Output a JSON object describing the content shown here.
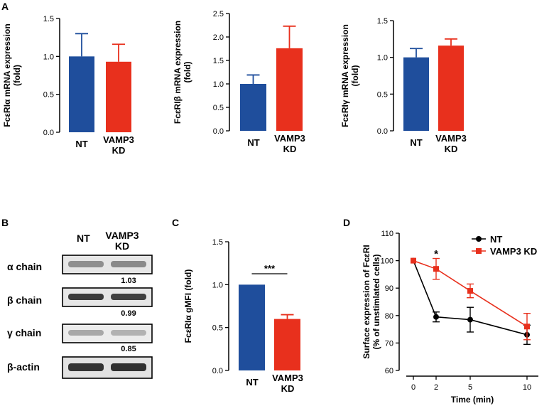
{
  "panel_labels": {
    "a": "A",
    "b": "B",
    "c": "C",
    "d": "D"
  },
  "colors": {
    "nt": "#1f4e9c",
    "kd": "#e8301d",
    "axis": "#000000"
  },
  "categories": {
    "nt": "NT",
    "kd_line1": "VAMP3",
    "kd_line2": "KD"
  },
  "chart_data": [
    {
      "id": "alpha",
      "type": "bar",
      "ylabel_line1": "FcεRIα mRNA expression",
      "ylabel_line2": "(fold)",
      "ylim": [
        0,
        1.5
      ],
      "ticks": [
        "0.0",
        "0.5",
        "1.0",
        "1.5"
      ],
      "values": [
        1.0,
        0.93
      ],
      "errors": [
        0.3,
        0.23
      ]
    },
    {
      "id": "beta",
      "type": "bar",
      "ylabel_line1": "FcεRIβ mRNA expression",
      "ylabel_line2": "(fold)",
      "ylim": [
        0,
        2.5
      ],
      "ticks": [
        "0.0",
        "0.5",
        "1.0",
        "1.5",
        "2.0",
        "2.5"
      ],
      "values": [
        1.0,
        1.76
      ],
      "errors": [
        0.19,
        0.47
      ]
    },
    {
      "id": "gamma",
      "type": "bar",
      "ylabel_line1": "FcεRIγ mRNA expression",
      "ylabel_line2": "(fold)",
      "ylim": [
        0,
        1.5
      ],
      "ticks": [
        "0.0",
        "0.5",
        "1.0",
        "1.5"
      ],
      "values": [
        1.0,
        1.16
      ],
      "errors": [
        0.12,
        0.09
      ]
    },
    {
      "id": "gmfi",
      "type": "bar",
      "ylabel_line1": "FcεRIα gMFI (fold)",
      "ylim": [
        0,
        1.5
      ],
      "ticks": [
        "0.0",
        "0.5",
        "1.0",
        "1.5"
      ],
      "values": [
        1.0,
        0.6
      ],
      "errors": [
        0.0,
        0.05
      ],
      "annotation": "***"
    },
    {
      "id": "timecourse",
      "type": "line",
      "ylabel_line1": "Surface expression of FcεRI",
      "ylabel_line2": "(% of unstimlated cells)",
      "xlabel": "Time (min)",
      "x": [
        0,
        2,
        5,
        10
      ],
      "xticks": [
        "0",
        "2",
        "5",
        "10"
      ],
      "ylim": [
        60,
        110
      ],
      "ticks": [
        "60",
        "70",
        "80",
        "90",
        "100",
        "110"
      ],
      "series": [
        {
          "name": "NT",
          "values": [
            100,
            79.5,
            78.5,
            73
          ],
          "errors": [
            0,
            1.8,
            4.5,
            3.5
          ]
        },
        {
          "name": "VAMP3 KD",
          "values": [
            100,
            97,
            89,
            76
          ],
          "errors": [
            0,
            3.8,
            2.5,
            4.8
          ]
        }
      ],
      "legend": "top-right",
      "annotation": "*"
    }
  ],
  "western": {
    "lanes": [
      "NT",
      "VAMP3",
      "KD"
    ],
    "rows": [
      {
        "label": "α chain",
        "value": "1.03"
      },
      {
        "label": "β chain",
        "value": "0.99"
      },
      {
        "label": "γ chain",
        "value": "0.85"
      },
      {
        "label": "β-actin",
        "value": ""
      }
    ]
  }
}
